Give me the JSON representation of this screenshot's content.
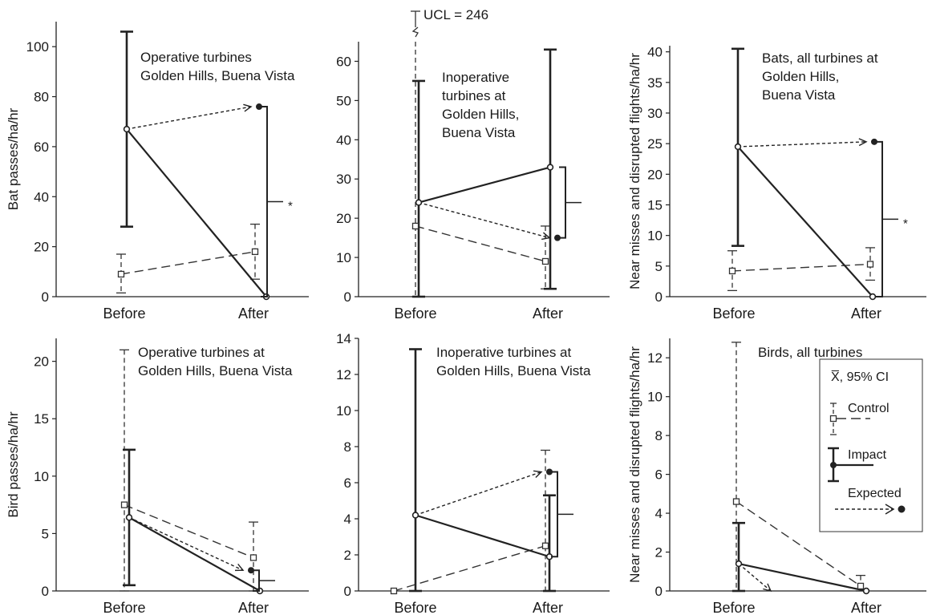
{
  "chart_data": [
    {
      "type": "scatter",
      "title": "Operative turbines\nGolden Hills, Buena Vista",
      "ylabel": "Bat passes/ha/hr",
      "categories": [
        "Before",
        "After"
      ],
      "ylim": [
        0,
        110
      ],
      "yticks": [
        0,
        20,
        40,
        60,
        80,
        100
      ],
      "control": {
        "means": [
          9,
          18
        ],
        "lower": [
          1.5,
          7
        ],
        "upper": [
          17,
          29
        ]
      },
      "impact": {
        "means": [
          67,
          0
        ],
        "lower": [
          28,
          0
        ],
        "upper": [
          106,
          0
        ]
      },
      "expected": 76,
      "significance": "*",
      "bracket": true,
      "ucl_label": ""
    },
    {
      "type": "scatter",
      "title": "Inoperative\nturbines at\nGolden Hills,\nBuena Vista",
      "ylabel": "",
      "categories": [
        "Before",
        "After"
      ],
      "ylim": [
        0,
        65
      ],
      "yticks": [
        0,
        10,
        20,
        30,
        40,
        50,
        60
      ],
      "control": {
        "means": [
          18,
          9
        ],
        "lower": [
          0,
          2
        ],
        "upper": [
          246,
          18
        ]
      },
      "impact": {
        "means": [
          24,
          33
        ],
        "lower": [
          0,
          2
        ],
        "upper": [
          55,
          63
        ]
      },
      "expected": 15,
      "significance": "",
      "bracket": true,
      "ucl_label": "UCL = 246"
    },
    {
      "type": "scatter",
      "title": "Bats, all turbines at\nGolden Hills,\nBuena Vista",
      "ylabel": "Near misses and disrupted flights/ha/hr",
      "categories": [
        "Before",
        "After"
      ],
      "ylim": [
        0,
        41
      ],
      "yticks": [
        0,
        5,
        10,
        15,
        20,
        25,
        30,
        35,
        40
      ],
      "control": {
        "means": [
          4.2,
          5.3
        ],
        "lower": [
          1,
          2.7
        ],
        "upper": [
          7.5,
          8
        ]
      },
      "impact": {
        "means": [
          24.5,
          0
        ],
        "lower": [
          8.3,
          0
        ],
        "upper": [
          40.5,
          0
        ]
      },
      "expected": 25.3,
      "significance": "*",
      "bracket": true,
      "ucl_label": ""
    },
    {
      "type": "scatter",
      "title": "Operative turbines at\nGolden Hills, Buena Vista",
      "ylabel": "Bird passes/ha/hr",
      "categories": [
        "Before",
        "After"
      ],
      "ylim": [
        0,
        22
      ],
      "yticks": [
        0,
        5,
        10,
        15,
        20
      ],
      "control": {
        "means": [
          7.5,
          2.9
        ],
        "lower": [
          0,
          0
        ],
        "upper": [
          21,
          6
        ]
      },
      "impact": {
        "means": [
          6.4,
          0
        ],
        "lower": [
          0.5,
          0
        ],
        "upper": [
          12.3,
          0
        ]
      },
      "expected": 1.8,
      "significance": "",
      "bracket": true,
      "ucl_label": ""
    },
    {
      "type": "scatter",
      "title": "Inoperative turbines at\nGolden Hills, Buena Vista",
      "ylabel": "",
      "categories": [
        "Before",
        "After"
      ],
      "ylim": [
        0,
        14
      ],
      "yticks": [
        0,
        2,
        4,
        6,
        8,
        10,
        12,
        14
      ],
      "control": {
        "means": [
          0,
          2.5
        ],
        "lower": [
          0,
          0
        ],
        "upper": [
          0,
          7.8
        ]
      },
      "impact": {
        "means": [
          4.2,
          1.9
        ],
        "lower": [
          0,
          0
        ],
        "upper": [
          13.4,
          5.3
        ]
      },
      "expected": 6.6,
      "significance": "",
      "bracket": true,
      "ucl_label": ""
    },
    {
      "type": "scatter",
      "title": "Birds, all turbines",
      "ylabel": "Near misses and disrupted flights/ha/hr",
      "categories": [
        "Before",
        "After"
      ],
      "ylim": [
        0,
        13
      ],
      "yticks": [
        0,
        2,
        4,
        6,
        8,
        10,
        12
      ],
      "control": {
        "means": [
          4.6,
          0.25
        ],
        "lower": [
          0,
          0
        ],
        "upper": [
          12.8,
          0.8
        ]
      },
      "impact": {
        "means": [
          1.4,
          0
        ],
        "lower": [
          0,
          0
        ],
        "upper": [
          3.5,
          0
        ]
      },
      "expected": 0,
      "significance": "",
      "bracket": false,
      "ucl_label": ""
    }
  ],
  "legend": {
    "title": "X̅, 95% CI",
    "control": "Control",
    "impact": "Impact",
    "expected": "Expected"
  }
}
